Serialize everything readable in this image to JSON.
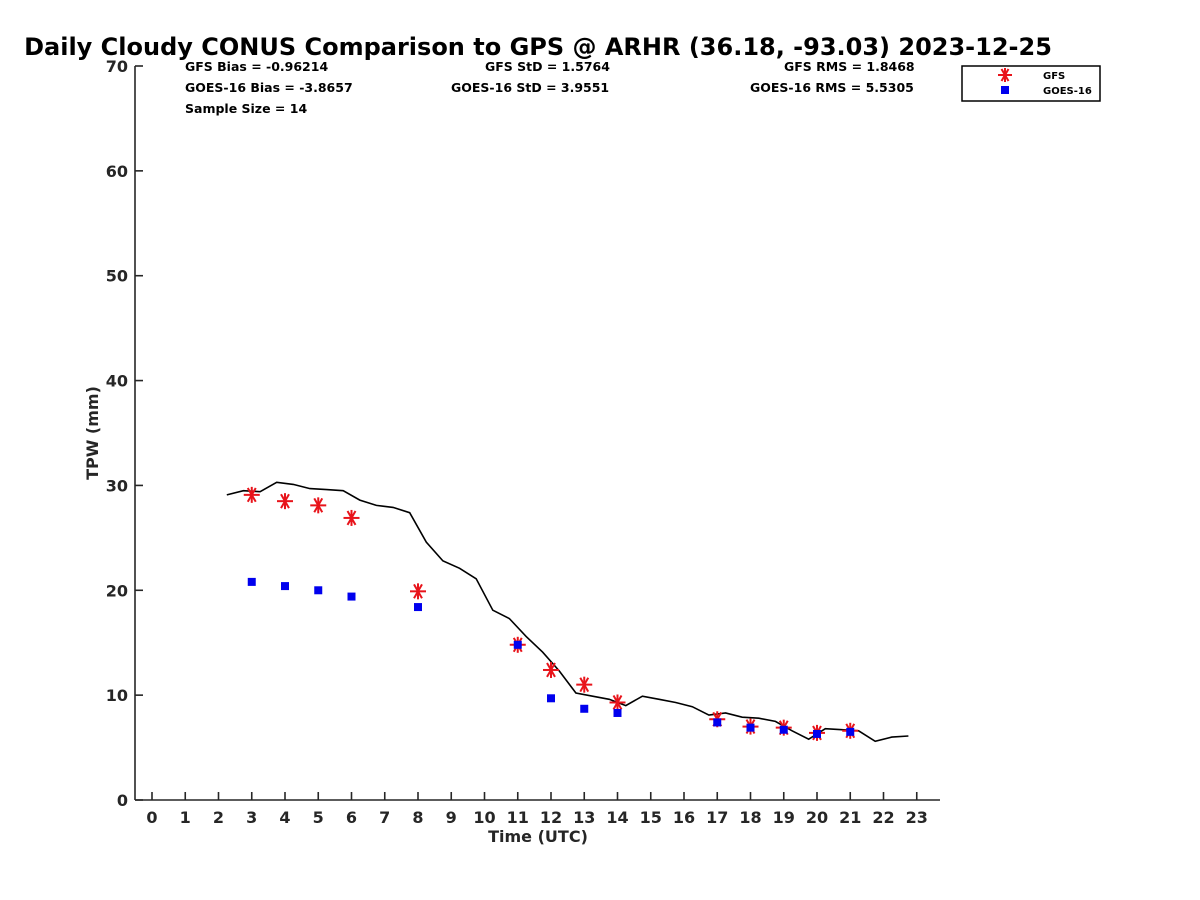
{
  "chart_data": {
    "type": "scatter",
    "title": "Daily Cloudy CONUS Comparison to GPS @ ARHR (36.18, -93.03) 2023-12-25",
    "xlabel": "Time (UTC)",
    "ylabel": "TPW (mm)",
    "xlim": [
      -0.5,
      23.7
    ],
    "ylim": [
      0,
      70
    ],
    "xticks": [
      0,
      1,
      2,
      3,
      4,
      5,
      6,
      7,
      8,
      9,
      10,
      11,
      12,
      13,
      14,
      15,
      16,
      17,
      18,
      19,
      20,
      21,
      22,
      23
    ],
    "yticks": [
      0,
      10,
      20,
      30,
      40,
      50,
      60,
      70
    ],
    "grid": false,
    "legend_position": "top-right",
    "stats": {
      "gfs_bias": "GFS Bias = -0.96214",
      "goes_bias": "GOES-16 Bias = -3.8657",
      "sample_size": "Sample Size = 14",
      "gfs_std": "GFS StD = 1.5764",
      "goes_std": "GOES-16 StD = 3.9551",
      "gfs_rms": "GFS RMS = 1.8468",
      "goes_rms": "GOES-16 RMS = 5.5305"
    },
    "series": [
      {
        "name": "GFS",
        "marker": "asterisk",
        "color": "#e8141b",
        "x": [
          3,
          4,
          5,
          6,
          8,
          11,
          12,
          13,
          14,
          17,
          18,
          19,
          20,
          21
        ],
        "y": [
          29.1,
          28.5,
          28.1,
          26.9,
          19.9,
          14.8,
          12.4,
          11.0,
          9.3,
          7.7,
          7.0,
          6.9,
          6.4,
          6.6
        ]
      },
      {
        "name": "GOES-16",
        "marker": "square",
        "color": "#0000ee",
        "x": [
          3,
          4,
          5,
          6,
          8,
          11,
          12,
          13,
          14,
          17,
          18,
          19,
          20,
          21
        ],
        "y": [
          20.8,
          20.4,
          20.0,
          19.4,
          18.4,
          14.8,
          9.7,
          8.7,
          8.3,
          7.4,
          6.9,
          6.7,
          6.3,
          6.5
        ]
      },
      {
        "marker": "line",
        "color": "#000000",
        "x": [
          2.25,
          2.75,
          3.25,
          3.75,
          4.25,
          4.75,
          5.25,
          5.75,
          6.25,
          6.75,
          7.25,
          7.75,
          8.25,
          8.75,
          9.25,
          9.75,
          10.25,
          10.75,
          11.25,
          11.75,
          12.25,
          12.75,
          13.25,
          13.75,
          14.25,
          14.75,
          15.25,
          15.75,
          16.25,
          16.75,
          17.25,
          17.75,
          18.25,
          18.75,
          19.25,
          19.75,
          20.25,
          20.75,
          21.25,
          21.75,
          22.25,
          22.75
        ],
        "y": [
          29.1,
          29.5,
          29.4,
          30.3,
          30.1,
          29.7,
          29.6,
          29.5,
          28.6,
          28.1,
          27.9,
          27.4,
          24.6,
          22.8,
          22.1,
          21.1,
          18.1,
          17.3,
          15.6,
          14.1,
          12.3,
          10.2,
          9.9,
          9.6,
          9.0,
          9.9,
          9.6,
          9.3,
          8.9,
          8.1,
          8.3,
          7.9,
          7.8,
          7.5,
          6.6,
          5.8,
          6.8,
          6.7,
          6.6,
          5.6,
          6.0,
          6.1
        ]
      }
    ]
  }
}
